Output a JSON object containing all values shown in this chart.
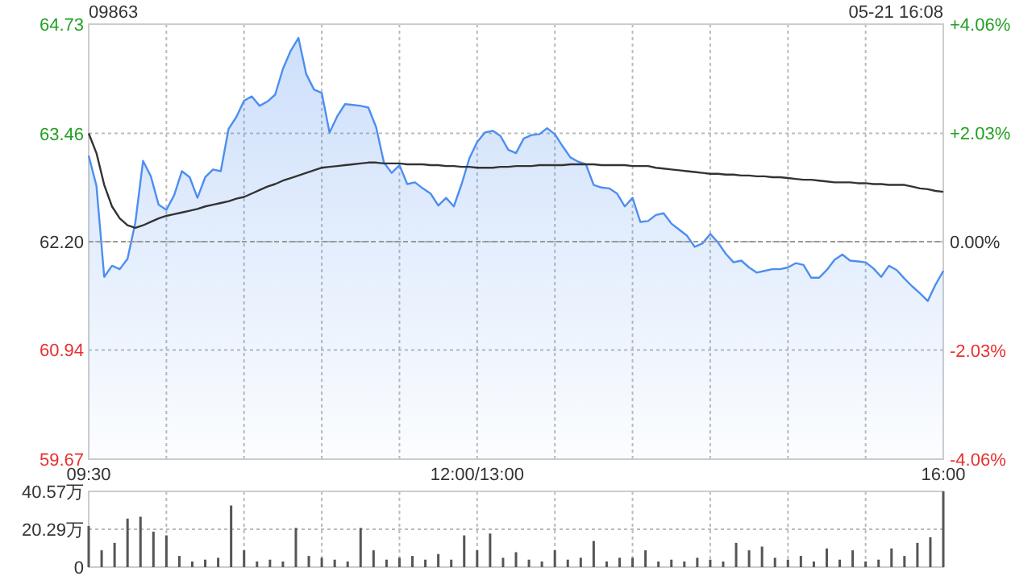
{
  "chart_data": [
    {
      "type": "area",
      "title": "09863",
      "annotations": [
        "05-21 16:08"
      ],
      "categories": [
        "09:30",
        null,
        null,
        null,
        null,
        null,
        null,
        null,
        null,
        null,
        null,
        null,
        null,
        null,
        null,
        null,
        null,
        null,
        null,
        null,
        null,
        null,
        null,
        null,
        null,
        null,
        null,
        null,
        null,
        null,
        null,
        null,
        null,
        null,
        null,
        null,
        null,
        null,
        null,
        null,
        null,
        null,
        null,
        null,
        null,
        null,
        null,
        null,
        null,
        null,
        "12:00/13:00",
        null,
        null,
        null,
        null,
        null,
        null,
        null,
        null,
        null,
        null,
        null,
        null,
        null,
        null,
        null,
        null,
        null,
        null,
        null,
        null,
        null,
        null,
        null,
        null,
        null,
        null,
        null,
        null,
        null,
        null,
        null,
        null,
        null,
        null,
        null,
        null,
        null,
        null,
        null,
        null,
        null,
        null,
        null,
        null,
        null,
        null,
        null,
        null,
        null,
        null,
        null,
        null,
        null,
        null,
        null,
        null,
        null,
        null,
        null,
        "16:00"
      ],
      "ylim": [
        59.67,
        64.73
      ],
      "yticks": [
        59.67,
        60.94,
        {
          "value": 62.2,
          "label": "62.20"
        },
        63.46,
        64.73
      ],
      "y2lim": [
        -4.06,
        4.06
      ],
      "y2ticks": [
        {
          "value": -4.06,
          "label": "-4.06%"
        },
        {
          "value": -2.03,
          "label": "-2.03%"
        },
        {
          "value": 0,
          "label": "0.00%"
        },
        {
          "value": 2.03,
          "label": "+2.03%"
        },
        {
          "value": 4.06,
          "label": "+4.06%"
        }
      ],
      "grid": true,
      "ref_lines": [
        {
          "axis": "y",
          "value": 62.2,
          "color": "#999999",
          "line_style": "dashed"
        }
      ],
      "series": [
        {
          "color": "#4d8ef0",
          "values": [
            63.2,
            62.85,
            61.79,
            61.92,
            61.88,
            62.0,
            62.42,
            63.14,
            62.96,
            62.63,
            62.57,
            62.74,
            63.02,
            62.95,
            62.71,
            62.95,
            63.04,
            63.02,
            63.51,
            63.65,
            63.84,
            63.89,
            63.78,
            63.83,
            63.91,
            64.21,
            64.42,
            64.57,
            64.15,
            63.97,
            63.93,
            63.47,
            63.66,
            63.8,
            63.79,
            63.78,
            63.76,
            63.53,
            63.12,
            63.0,
            63.09,
            62.87,
            62.89,
            62.82,
            62.76,
            62.62,
            62.71,
            62.61,
            62.87,
            63.17,
            63.36,
            63.47,
            63.49,
            63.43,
            63.27,
            63.23,
            63.4,
            63.44,
            63.45,
            63.52,
            63.45,
            63.31,
            63.18,
            63.13,
            63.1,
            62.86,
            62.83,
            62.82,
            62.76,
            62.61,
            62.71,
            62.43,
            62.44,
            62.51,
            62.53,
            62.41,
            62.34,
            62.27,
            62.14,
            62.18,
            62.29,
            62.19,
            62.06,
            61.96,
            61.98,
            61.9,
            61.84,
            61.86,
            61.88,
            61.88,
            61.9,
            61.95,
            61.93,
            61.78,
            61.78,
            61.87,
            61.99,
            62.05,
            61.98,
            61.97,
            61.96,
            61.89,
            61.79,
            61.92,
            61.87,
            61.77,
            61.68,
            61.6,
            61.51,
            61.7,
            61.86
          ]
        },
        {
          "type": "line",
          "color": "#333333",
          "values": [
            63.46,
            63.23,
            62.86,
            62.61,
            62.47,
            62.39,
            62.36,
            62.39,
            62.43,
            62.47,
            62.5,
            62.52,
            62.54,
            62.56,
            62.58,
            62.61,
            62.63,
            62.65,
            62.67,
            62.7,
            62.72,
            62.76,
            62.8,
            62.84,
            62.87,
            62.91,
            62.94,
            62.97,
            63.0,
            63.03,
            63.06,
            63.07,
            63.08,
            63.09,
            63.1,
            63.11,
            63.12,
            63.12,
            63.11,
            63.11,
            63.11,
            63.1,
            63.1,
            63.1,
            63.09,
            63.09,
            63.08,
            63.08,
            63.07,
            63.07,
            63.06,
            63.06,
            63.06,
            63.07,
            63.07,
            63.08,
            63.08,
            63.08,
            63.09,
            63.09,
            63.09,
            63.09,
            63.1,
            63.1,
            63.1,
            63.1,
            63.09,
            63.09,
            63.09,
            63.09,
            63.08,
            63.08,
            63.08,
            63.06,
            63.05,
            63.04,
            63.03,
            63.02,
            63.01,
            63.0,
            62.99,
            62.99,
            62.98,
            62.98,
            62.97,
            62.97,
            62.96,
            62.96,
            62.95,
            62.95,
            62.94,
            62.93,
            62.92,
            62.92,
            62.91,
            62.9,
            62.89,
            62.89,
            62.89,
            62.88,
            62.88,
            62.87,
            62.87,
            62.86,
            62.86,
            62.86,
            62.84,
            62.82,
            62.81,
            62.79,
            62.78
          ]
        }
      ]
    },
    {
      "type": "bar",
      "color": "#555555",
      "tick_labels": "y",
      "categories": [
        null,
        null,
        null,
        null,
        null,
        null,
        null,
        null,
        null,
        null,
        null,
        null,
        null,
        null,
        null,
        null,
        null,
        null,
        null,
        null,
        null,
        null,
        null,
        null,
        null,
        null,
        null,
        null,
        null,
        null,
        null,
        null,
        null,
        null,
        null,
        null,
        null,
        null,
        null,
        null,
        null,
        null,
        null,
        null,
        null,
        null,
        null,
        null,
        null,
        null,
        null,
        null,
        null,
        null,
        null,
        null,
        null,
        null,
        null,
        null,
        null,
        null,
        null,
        null,
        null,
        null,
        null
      ],
      "ylim": [
        0,
        40.57
      ],
      "yticks": [
        0,
        {
          "value": 20.29,
          "label": "20.29万"
        },
        {
          "value": 40.57,
          "label": "40.57万"
        }
      ],
      "grid": true,
      "values": [
        22,
        9,
        13,
        26,
        27,
        19,
        17,
        6,
        3,
        4,
        5,
        33,
        9,
        3,
        4,
        3,
        21,
        6,
        5,
        4,
        3,
        21,
        9,
        4,
        5,
        6,
        4,
        7,
        4,
        17,
        9,
        18,
        5,
        8,
        4,
        3,
        9,
        4,
        5,
        14,
        3,
        5,
        5,
        9,
        3,
        4,
        3,
        5,
        4,
        3,
        13,
        9,
        11,
        5,
        4,
        6,
        3,
        10,
        4,
        9,
        3,
        4,
        10,
        6,
        13,
        16,
        40.57
      ]
    }
  ]
}
